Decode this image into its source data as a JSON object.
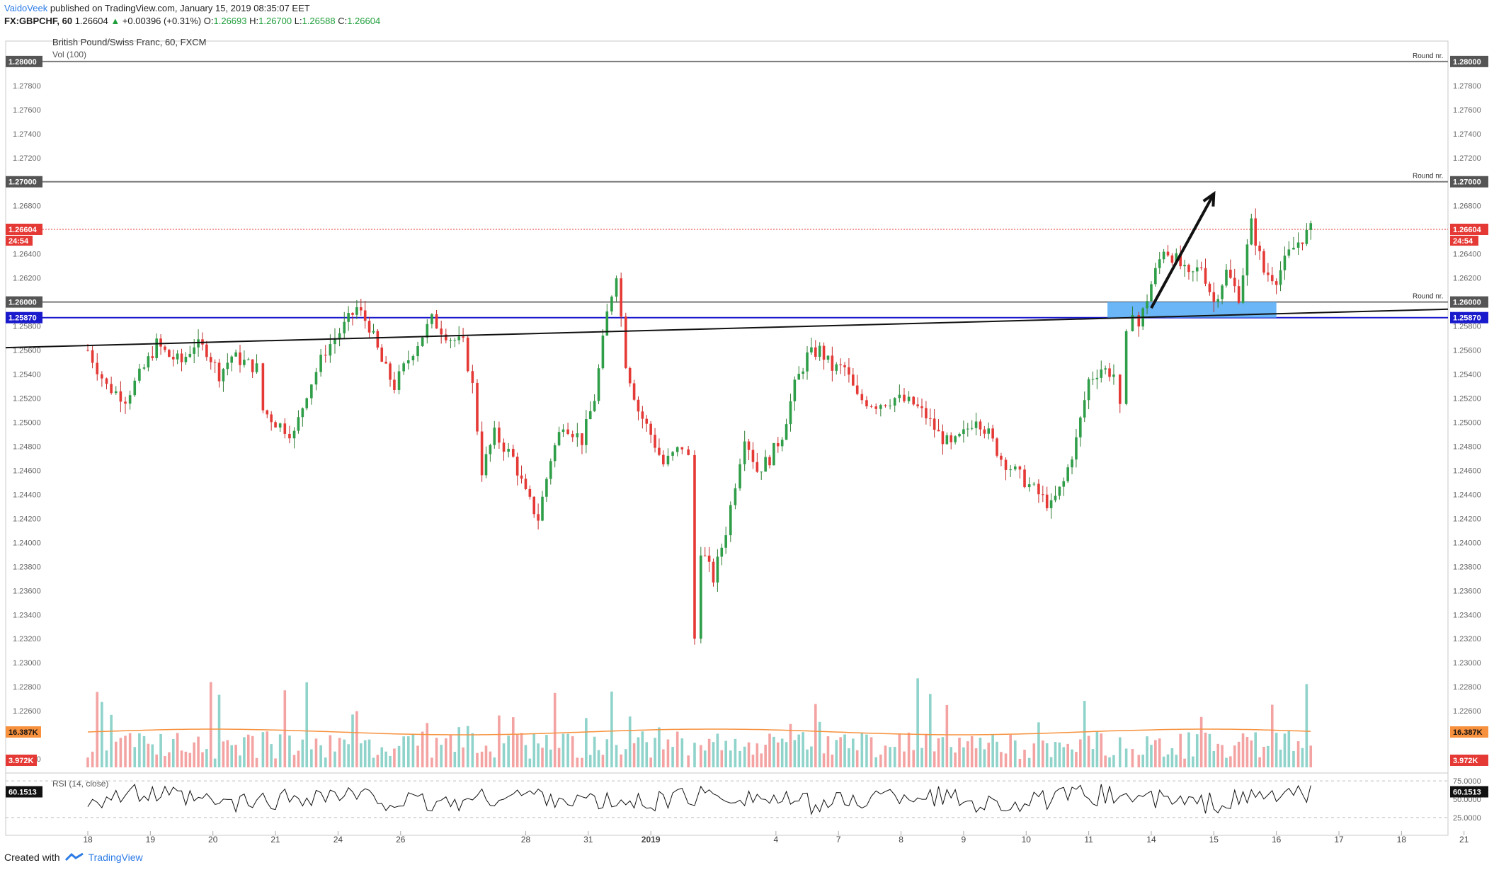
{
  "header": {
    "author": "VaidoVeek",
    "published_text": " published on TradingView.com, January 15, 2019 08:35:07 EET",
    "symbol_line": "FX:GBPCHF, 60",
    "last": "1.26604",
    "change": "+0.00396 (+0.31%)",
    "o_label": "O:",
    "o": "1.26693",
    "h_label": "H:",
    "h": "1.26700",
    "l_label": "L:",
    "l": "1.26588",
    "c_label": "C:",
    "c": "1.26604"
  },
  "footer": {
    "created_with": "Created with",
    "brand": "TradingView"
  },
  "colors": {
    "up": "#26a69a",
    "up_body": "#2e8b57",
    "down": "#e53935",
    "vol_up": "#8fd3cb",
    "vol_down": "#f4a3a3",
    "vol_ma": "#f7913d",
    "support_line": "#1a1acd",
    "round_line": "#7a7a7a",
    "price_line": "#e53935",
    "zone": "#5aaef5",
    "trend": "#111111"
  },
  "chart_data": {
    "type": "candlestick",
    "title": "British Pound/Swiss Franc, 60, FXCM",
    "volume_label": "Vol (100)",
    "rsi_label": "RSI (14, close)",
    "price_axis_ticks": [
      "1.28000",
      "1.27800",
      "1.27600",
      "1.27400",
      "1.27200",
      "1.27000",
      "1.26800",
      "1.26600",
      "1.26400",
      "1.26200",
      "1.26000",
      "1.25800",
      "1.25600",
      "1.25400",
      "1.25200",
      "1.25000",
      "1.24800",
      "1.24600",
      "1.24400",
      "1.24200",
      "1.24000",
      "1.23800",
      "1.23600",
      "1.23400",
      "1.23200",
      "1.23000",
      "1.22800",
      "1.22600",
      "1.22400",
      "1.22200"
    ],
    "price_tick_values": [
      1.28,
      1.278,
      1.276,
      1.274,
      1.272,
      1.27,
      1.268,
      1.266,
      1.264,
      1.262,
      1.26,
      1.258,
      1.256,
      1.254,
      1.252,
      1.25,
      1.248,
      1.246,
      1.244,
      1.242,
      1.24,
      1.238,
      1.236,
      1.234,
      1.232,
      1.23,
      1.228,
      1.226,
      1.224,
      1.222
    ],
    "ylim": [
      1.2213,
      1.2817
    ],
    "x_ticks": [
      "18",
      "19",
      "20",
      "21",
      "24",
      "26",
      "28",
      "31",
      "2019",
      "4",
      "7",
      "8",
      "9",
      "10",
      "11",
      "14",
      "15",
      "16",
      "17",
      "18",
      "21"
    ],
    "x_tick_index": [
      0,
      1,
      2,
      3,
      4,
      5,
      7,
      8,
      9,
      11,
      12,
      13,
      14,
      15,
      16,
      17,
      18,
      19,
      20,
      21,
      22
    ],
    "x_days_total": 22.7,
    "round_levels": [
      {
        "value": 1.28,
        "label": "1.28000",
        "note": "Round nr."
      },
      {
        "value": 1.27,
        "label": "1.27000",
        "note": "Round nr."
      },
      {
        "value": 1.26,
        "label": "1.26000",
        "note": "Round nr."
      }
    ],
    "support_level": {
      "value": 1.2587,
      "label": "1.25870"
    },
    "last_price": {
      "value": 1.26604,
      "label": "1.26604",
      "countdown": "24:54"
    },
    "trendline": {
      "from": {
        "day": 0,
        "price": 1.2562
      },
      "to": {
        "day": 22.7,
        "price": 1.2594
      }
    },
    "zone": {
      "day_from": 16.3,
      "day_to": 19.0,
      "price_from": 1.2587,
      "price_to": 1.26
    },
    "arrow": {
      "from": {
        "day": 17.0,
        "price": 1.2595
      },
      "to": {
        "day": 18.0,
        "price": 1.269
      }
    },
    "price_path": [
      [
        0,
        1.256
      ],
      [
        0.3,
        1.253
      ],
      [
        0.6,
        1.252
      ],
      [
        0.9,
        1.2545
      ],
      [
        1.1,
        1.2565
      ],
      [
        1.3,
        1.2555
      ],
      [
        1.5,
        1.255
      ],
      [
        1.7,
        1.2565
      ],
      [
        1.9,
        1.256
      ],
      [
        2.1,
        1.254
      ],
      [
        2.3,
        1.2555
      ],
      [
        2.7,
        1.2545
      ],
      [
        2.8,
        1.251
      ],
      [
        3.0,
        1.25
      ],
      [
        3.3,
        1.249
      ],
      [
        3.5,
        1.2525
      ],
      [
        3.8,
        1.256
      ],
      [
        4.1,
        1.258
      ],
      [
        4.3,
        1.2595
      ],
      [
        4.5,
        1.258
      ],
      [
        4.7,
        1.255
      ],
      [
        4.9,
        1.253
      ],
      [
        5.2,
        1.256
      ],
      [
        5.5,
        1.2585
      ],
      [
        5.8,
        1.257
      ],
      [
        6.0,
        1.2565
      ],
      [
        6.15,
        1.253
      ],
      [
        6.3,
        1.246
      ],
      [
        6.5,
        1.249
      ],
      [
        6.8,
        1.247
      ],
      [
        7.0,
        1.244
      ],
      [
        7.2,
        1.242
      ],
      [
        7.4,
        1.247
      ],
      [
        7.6,
        1.25
      ],
      [
        7.9,
        1.2485
      ],
      [
        8.1,
        1.252
      ],
      [
        8.3,
        1.259
      ],
      [
        8.45,
        1.2625
      ],
      [
        8.6,
        1.255
      ],
      [
        8.8,
        1.251
      ],
      [
        9.0,
        1.249
      ],
      [
        9.2,
        1.2465
      ],
      [
        9.5,
        1.248
      ],
      [
        9.6,
        1.247
      ],
      [
        9.7,
        1.232
      ],
      [
        9.8,
        1.2395
      ],
      [
        10.0,
        1.237
      ],
      [
        10.2,
        1.241
      ],
      [
        10.5,
        1.249
      ],
      [
        10.7,
        1.246
      ],
      [
        10.9,
        1.247
      ],
      [
        11.1,
        1.249
      ],
      [
        11.3,
        1.253
      ],
      [
        11.5,
        1.2555
      ],
      [
        11.7,
        1.256
      ],
      [
        11.9,
        1.2545
      ],
      [
        12.1,
        1.2545
      ],
      [
        12.3,
        1.252
      ],
      [
        12.6,
        1.2515
      ],
      [
        12.9,
        1.252
      ],
      [
        13.2,
        1.2515
      ],
      [
        13.4,
        1.2505
      ],
      [
        13.6,
        1.249
      ],
      [
        13.8,
        1.248
      ],
      [
        14.0,
        1.249
      ],
      [
        14.2,
        1.2505
      ],
      [
        14.4,
        1.249
      ],
      [
        14.6,
        1.247
      ],
      [
        14.9,
        1.2455
      ],
      [
        15.2,
        1.244
      ],
      [
        15.4,
        1.243
      ],
      [
        15.6,
        1.245
      ],
      [
        15.8,
        1.2485
      ],
      [
        16.0,
        1.2535
      ],
      [
        16.2,
        1.2545
      ],
      [
        16.4,
        1.254
      ],
      [
        16.5,
        1.251
      ],
      [
        16.6,
        1.257
      ],
      [
        16.7,
        1.2595
      ],
      [
        16.8,
        1.258
      ],
      [
        17.0,
        1.2615
      ],
      [
        17.2,
        1.2645
      ],
      [
        17.4,
        1.2635
      ],
      [
        17.6,
        1.262
      ],
      [
        17.8,
        1.263
      ],
      [
        18.0,
        1.26
      ],
      [
        18.2,
        1.2625
      ],
      [
        18.4,
        1.2605
      ],
      [
        18.6,
        1.2665
      ],
      [
        18.8,
        1.2625
      ],
      [
        19.0,
        1.262
      ],
      [
        19.2,
        1.264
      ],
      [
        19.35,
        1.265
      ],
      [
        19.55,
        1.266
      ]
    ],
    "volume_axis": {
      "ma_label": "16.387K",
      "last_label": "3.972K"
    },
    "rsi_axis": {
      "ticks": [
        "75.0000",
        "50.0000",
        "25.0000"
      ],
      "tick_values": [
        75,
        50,
        25
      ],
      "last_label": "60.1513",
      "value": 60.1513
    }
  }
}
